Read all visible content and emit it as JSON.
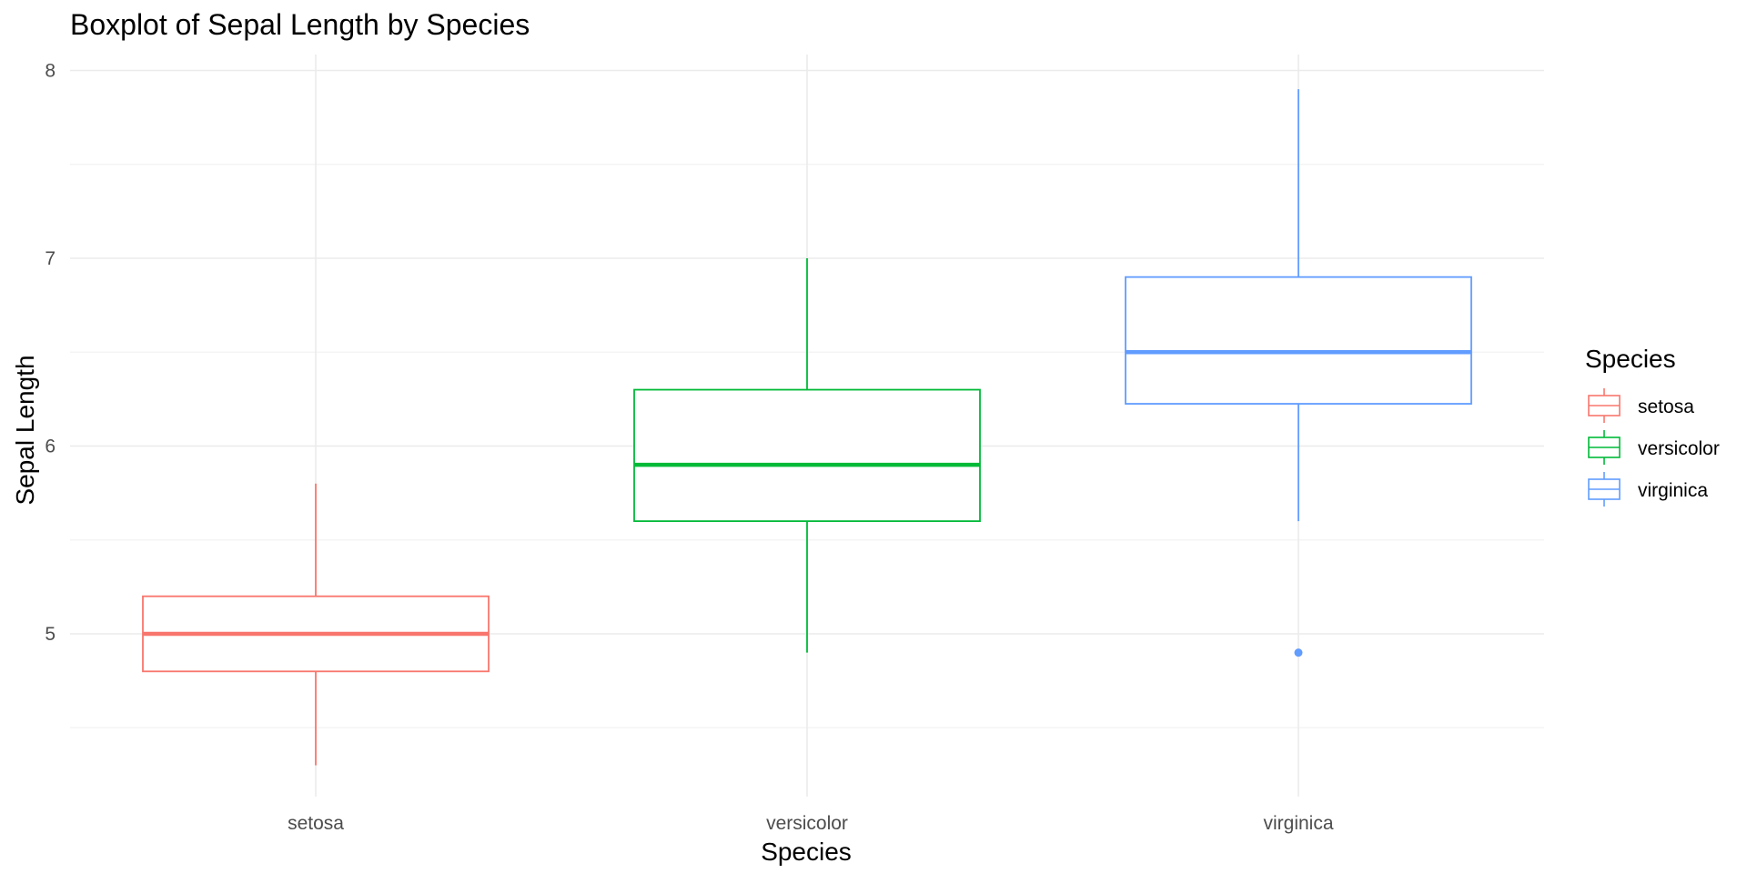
{
  "chart_data": {
    "type": "boxplot",
    "title": "Boxplot of Sepal Length by Species",
    "xlabel": "Species",
    "ylabel": "Sepal Length",
    "categories": [
      "setosa",
      "versicolor",
      "virginica"
    ],
    "ylim": [
      4.2,
      8.08
    ],
    "yticks": [
      5,
      6,
      7,
      8
    ],
    "grid": true,
    "legend": {
      "title": "Species",
      "position": "right",
      "entries": [
        "setosa",
        "versicolor",
        "virginica"
      ]
    },
    "series": [
      {
        "name": "setosa",
        "color": "#F8766D",
        "whisker_low": 4.3,
        "q1": 4.8,
        "median": 5.0,
        "q3": 5.2,
        "whisker_high": 5.8,
        "outliers": []
      },
      {
        "name": "versicolor",
        "color": "#00BA38",
        "whisker_low": 4.9,
        "q1": 5.6,
        "median": 5.9,
        "q3": 6.3,
        "whisker_high": 7.0,
        "outliers": []
      },
      {
        "name": "virginica",
        "color": "#619CFF",
        "whisker_low": 5.6,
        "q1": 6.225,
        "median": 6.5,
        "q3": 6.9,
        "whisker_high": 7.9,
        "outliers": [
          4.9
        ]
      }
    ]
  }
}
